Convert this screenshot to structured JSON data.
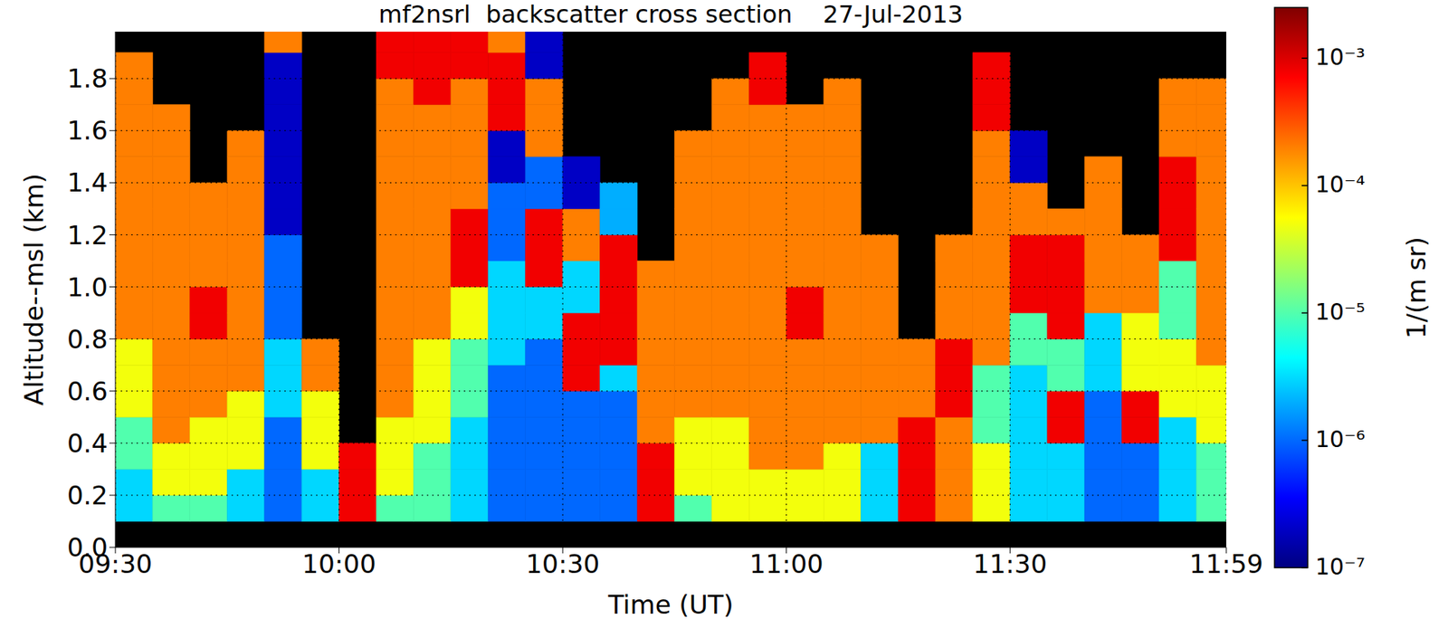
{
  "chart_data": {
    "type": "heatmap",
    "title": "mf2nsrl  backscatter cross section    27-Jul-2013",
    "xlabel": "Time (UT)",
    "ylabel": "Altitude--msl (km)",
    "xlim": [
      570,
      719
    ],
    "xticks": [
      {
        "value": 570,
        "label": "09:30"
      },
      {
        "value": 600,
        "label": "10:00"
      },
      {
        "value": 630,
        "label": "10:30"
      },
      {
        "value": 660,
        "label": "11:00"
      },
      {
        "value": 690,
        "label": "11:30"
      },
      {
        "value": 719,
        "label": "11:59"
      }
    ],
    "ylim": [
      0,
      1.98
    ],
    "yticks": [
      {
        "value": 0,
        "label": "0.0"
      },
      0.2,
      0.4,
      0.6,
      0.8,
      {
        "value": 1,
        "label": "1.0"
      },
      1.2,
      1.4,
      1.6,
      1.8
    ],
    "grid": true,
    "x_edges": [
      570,
      575,
      580,
      585,
      590,
      595,
      600,
      605,
      610,
      615,
      620,
      625,
      630,
      635,
      640,
      645,
      650,
      655,
      660,
      665,
      670,
      675,
      680,
      685,
      690,
      695,
      700,
      705,
      710,
      715,
      719
    ],
    "y_edges": [
      0.1,
      0.2,
      0.3,
      0.4,
      0.5,
      0.6,
      0.7,
      0.8,
      0.9,
      1.0,
      1.1,
      1.2,
      1.3,
      1.4,
      1.5,
      1.6,
      1.7,
      1.8,
      1.9,
      1.98
    ],
    "cells": [
      [
        3e-06,
        3e-06,
        1e-05,
        1e-05,
        5e-05,
        5e-05,
        5e-05,
        0.0002,
        0.0002,
        0.0002,
        0.0002,
        0.0002,
        0.0002,
        0.0002,
        0.0002,
        0.0002,
        0.0002,
        0.0002,
        null
      ],
      [
        1e-05,
        5e-05,
        5e-05,
        0.0002,
        0.0002,
        0.0002,
        0.0002,
        0.0002,
        0.0002,
        0.0002,
        0.0002,
        0.0002,
        0.0002,
        0.0002,
        0.0002,
        0.0002,
        null,
        null,
        null
      ],
      [
        1e-05,
        5e-05,
        5e-05,
        5e-05,
        0.0002,
        0.0002,
        0.0002,
        0.0008,
        0.0008,
        0.0002,
        0.0002,
        0.0002,
        0.0002,
        null,
        null,
        null,
        null,
        null,
        null
      ],
      [
        3e-06,
        3e-06,
        5e-05,
        5e-05,
        5e-05,
        0.0002,
        0.0002,
        0.0002,
        0.0002,
        0.0002,
        0.0002,
        0.0002,
        0.0002,
        0.0002,
        0.0002,
        null,
        null,
        null,
        null
      ],
      [
        1e-06,
        1e-06,
        1e-06,
        1e-06,
        3e-06,
        3e-06,
        3e-06,
        1e-06,
        1e-06,
        1e-06,
        1e-06,
        2e-07,
        2e-07,
        2e-07,
        2e-07,
        2e-07,
        2e-07,
        2e-07,
        0.0002
      ],
      [
        3e-06,
        3e-06,
        5e-05,
        5e-05,
        5e-05,
        0.0002,
        0.0002,
        null,
        null,
        null,
        null,
        null,
        null,
        null,
        null,
        null,
        null,
        null,
        null
      ],
      [
        0.0008,
        0.0008,
        0.0008,
        null,
        null,
        null,
        null,
        null,
        null,
        null,
        null,
        null,
        null,
        null,
        null,
        null,
        null,
        null,
        null
      ],
      [
        1e-05,
        5e-05,
        5e-05,
        5e-05,
        0.0002,
        0.0002,
        0.0002,
        0.0002,
        0.0002,
        0.0002,
        0.0002,
        0.0002,
        0.0002,
        0.0002,
        0.0002,
        0.0002,
        0.0002,
        0.0008,
        0.0008
      ],
      [
        1e-05,
        1e-05,
        1e-05,
        5e-05,
        5e-05,
        5e-05,
        5e-05,
        0.0002,
        0.0002,
        0.0002,
        0.0002,
        0.0002,
        0.0002,
        0.0002,
        0.0002,
        0.0002,
        0.0008,
        0.0008,
        0.0008
      ],
      [
        3e-06,
        3e-06,
        3e-06,
        3e-06,
        1e-05,
        1e-05,
        1e-05,
        5e-05,
        5e-05,
        0.0008,
        0.0008,
        0.0008,
        0.0002,
        0.0002,
        0.0002,
        0.0002,
        0.0002,
        0.0008,
        0.0008
      ],
      [
        1e-06,
        1e-06,
        1e-06,
        1e-06,
        1e-06,
        1e-06,
        3e-06,
        3e-06,
        3e-06,
        3e-06,
        1e-06,
        1e-06,
        1e-06,
        2e-07,
        2e-07,
        0.0008,
        0.0008,
        0.0008,
        0.0002
      ],
      [
        1e-06,
        1e-06,
        1e-06,
        1e-06,
        1e-06,
        1e-06,
        1e-06,
        3e-06,
        3e-06,
        0.0008,
        0.0008,
        0.0008,
        1e-06,
        1e-06,
        0.0002,
        0.0002,
        0.0002,
        2e-07,
        2e-07
      ],
      [
        1e-06,
        1e-06,
        1e-06,
        1e-06,
        1e-06,
        0.0008,
        0.0008,
        0.0008,
        3e-06,
        3e-06,
        0.0002,
        0.0002,
        2e-07,
        2e-07,
        null,
        null,
        null,
        null,
        null
      ],
      [
        1e-06,
        1e-06,
        1e-06,
        1e-06,
        1e-06,
        3e-06,
        0.0008,
        0.0008,
        0.0008,
        0.0008,
        0.0008,
        2e-06,
        2e-06,
        null,
        null,
        null,
        null,
        null,
        null
      ],
      [
        0.0008,
        0.0008,
        0.0008,
        0.0002,
        0.0002,
        0.0002,
        0.0002,
        0.0002,
        0.0002,
        0.0002,
        null,
        null,
        null,
        null,
        null,
        null,
        null,
        null,
        null
      ],
      [
        1e-05,
        5e-05,
        5e-05,
        5e-05,
        0.0002,
        0.0002,
        0.0002,
        0.0002,
        0.0002,
        0.0002,
        0.0002,
        0.0002,
        0.0002,
        0.0002,
        0.0002,
        null,
        null,
        null,
        null
      ],
      [
        5e-05,
        5e-05,
        5e-05,
        5e-05,
        0.0002,
        0.0002,
        0.0002,
        0.0002,
        0.0002,
        0.0002,
        0.0002,
        0.0002,
        0.0002,
        0.0002,
        0.0002,
        0.0002,
        0.0002,
        null,
        null
      ],
      [
        5e-05,
        5e-05,
        0.0002,
        0.0002,
        0.0002,
        0.0002,
        0.0002,
        0.0002,
        0.0002,
        0.0002,
        0.0002,
        0.0002,
        0.0002,
        0.0002,
        0.0002,
        0.0002,
        0.0008,
        0.0008,
        null
      ],
      [
        5e-05,
        5e-05,
        0.0002,
        0.0002,
        0.0002,
        0.0002,
        0.0002,
        0.0008,
        0.0008,
        0.0002,
        0.0002,
        0.0002,
        0.0002,
        0.0002,
        0.0002,
        0.0002,
        null,
        null,
        null
      ],
      [
        5e-05,
        5e-05,
        5e-05,
        0.0002,
        0.0002,
        0.0002,
        0.0002,
        0.0002,
        0.0002,
        0.0002,
        0.0002,
        0.0002,
        0.0002,
        0.0002,
        0.0002,
        0.0002,
        0.0002,
        null,
        null
      ],
      [
        3e-06,
        3e-06,
        3e-06,
        0.0002,
        0.0002,
        0.0002,
        0.0002,
        0.0002,
        0.0002,
        0.0002,
        0.0002,
        null,
        null,
        null,
        null,
        null,
        null,
        null,
        null
      ],
      [
        0.0008,
        0.0008,
        0.0008,
        0.0008,
        0.0002,
        0.0002,
        0.0002,
        null,
        null,
        null,
        null,
        null,
        null,
        null,
        null,
        null,
        null,
        null,
        null
      ],
      [
        0.0002,
        0.0002,
        0.0002,
        0.0002,
        0.0008,
        0.0008,
        0.0008,
        0.0002,
        0.0002,
        0.0002,
        0.0002,
        null,
        null,
        null,
        null,
        null,
        null,
        null,
        null
      ],
      [
        5e-05,
        5e-05,
        5e-05,
        1e-05,
        1e-05,
        1e-05,
        0.0002,
        0.0002,
        0.0002,
        0.0002,
        0.0002,
        0.0002,
        0.0002,
        0.0002,
        0.0002,
        0.0008,
        0.0008,
        0.0008,
        null
      ],
      [
        3e-06,
        3e-06,
        3e-06,
        3e-06,
        3e-06,
        3e-06,
        1e-05,
        1e-05,
        0.0008,
        0.0008,
        0.0008,
        0.0002,
        0.0002,
        2e-07,
        2e-07,
        null,
        null,
        null,
        null
      ],
      [
        3e-06,
        3e-06,
        3e-06,
        0.0008,
        0.0008,
        1e-05,
        1e-05,
        0.0008,
        0.0008,
        0.0008,
        0.0008,
        0.0002,
        null,
        null,
        null,
        null,
        null,
        null,
        null
      ],
      [
        1e-06,
        1e-06,
        1e-06,
        1e-06,
        1e-06,
        3e-06,
        3e-06,
        3e-06,
        0.0002,
        0.0002,
        0.0002,
        0.0002,
        0.0002,
        0.0002,
        null,
        null,
        null,
        null,
        null
      ],
      [
        1e-06,
        1e-06,
        1e-06,
        0.0008,
        0.0008,
        5e-05,
        5e-05,
        5e-05,
        0.0002,
        0.0002,
        0.0002,
        null,
        null,
        null,
        null,
        null,
        null,
        null,
        null
      ],
      [
        3e-06,
        3e-06,
        3e-06,
        3e-06,
        5e-05,
        5e-05,
        5e-05,
        1e-05,
        1e-05,
        1e-05,
        0.0008,
        0.0008,
        0.0008,
        0.0008,
        0.0002,
        0.0002,
        0.0002,
        null,
        null
      ],
      [
        1e-05,
        1e-05,
        1e-05,
        5e-05,
        5e-05,
        5e-05,
        0.0002,
        0.0002,
        0.0002,
        0.0002,
        0.0002,
        0.0002,
        0.0002,
        0.0002,
        0.0002,
        0.0002,
        0.0002,
        null,
        null
      ]
    ],
    "colorbar": {
      "label": "1/(m sr)",
      "lim": [
        1e-07,
        0.0025
      ],
      "log": true,
      "ticks": [
        {
          "value": 0.001,
          "label": "10⁻³"
        },
        {
          "value": 0.0001,
          "label": "10⁻⁴"
        },
        {
          "value": 1e-05,
          "label": "10⁻⁵"
        },
        {
          "value": 1e-06,
          "label": "10⁻⁶"
        },
        {
          "value": 1e-07,
          "label": "10⁻⁷"
        }
      ]
    }
  }
}
